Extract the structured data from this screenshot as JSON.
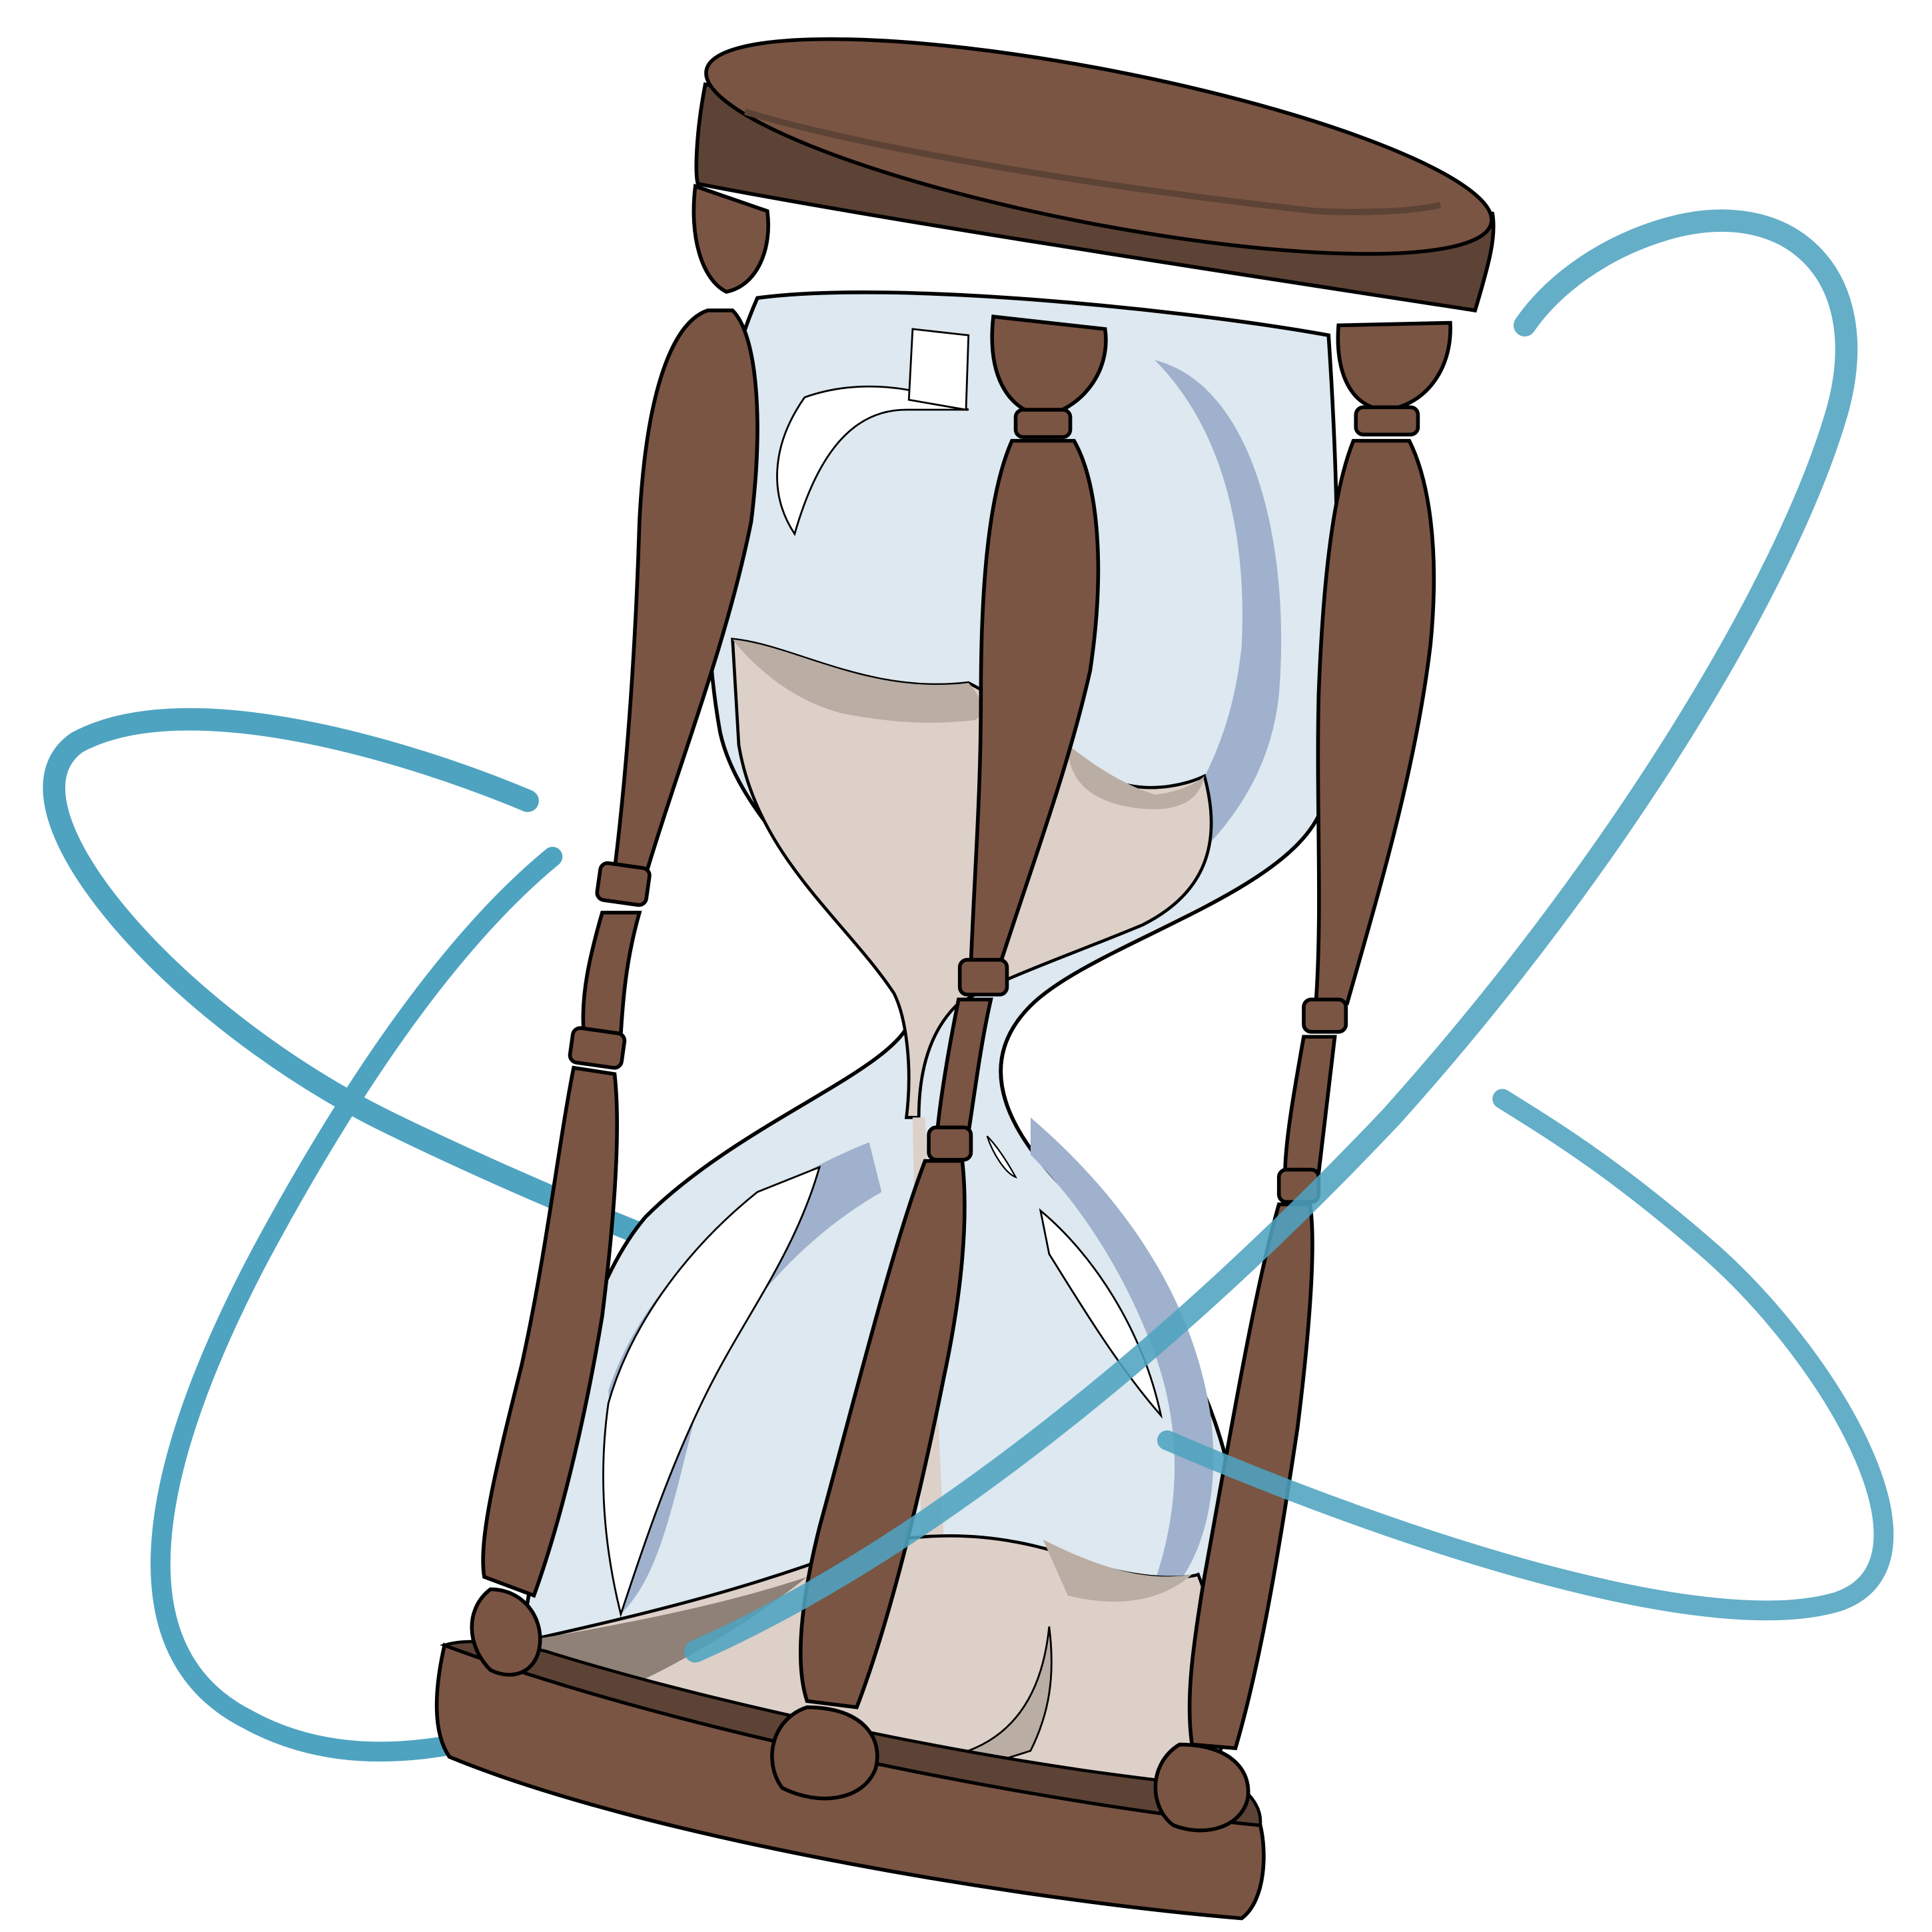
{
  "illustration": {
    "subject": "hourglass",
    "icon": "hourglass-icon",
    "decoration": "orbit-rings-icon"
  },
  "colors": {
    "background": "#ffffff",
    "wood": "#7a5543",
    "wood_shadow": "#5c4335",
    "outline": "#000000",
    "glass_light": "#e1ecf2",
    "glass_mid": "#d7e3ee",
    "glass_shadow": "#9fb1cc",
    "glass_highlight": "#ffffff",
    "sand": "#ddd0c8",
    "sand_shadow": "#b9ada4",
    "sand_dark": "#8f8177",
    "orbit": "#4ea3c0"
  }
}
